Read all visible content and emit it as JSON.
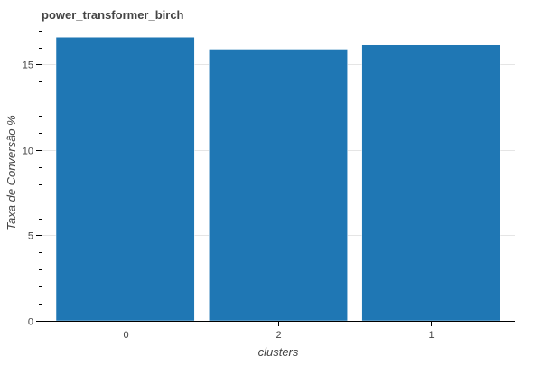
{
  "chart_data": {
    "type": "bar",
    "title": "power_transformer_birch",
    "categories": [
      "0",
      "2",
      "1"
    ],
    "values": [
      16.6,
      15.9,
      16.15
    ],
    "xlabel": "clusters",
    "ylabel": "Taxa de Conversão %",
    "ylim": [
      0,
      17.3
    ],
    "yticks": [
      0,
      5,
      10,
      15
    ],
    "ytick_labels": [
      "0",
      "5",
      "10",
      "15"
    ],
    "grid": true,
    "bar_color": "#1f77b4"
  }
}
